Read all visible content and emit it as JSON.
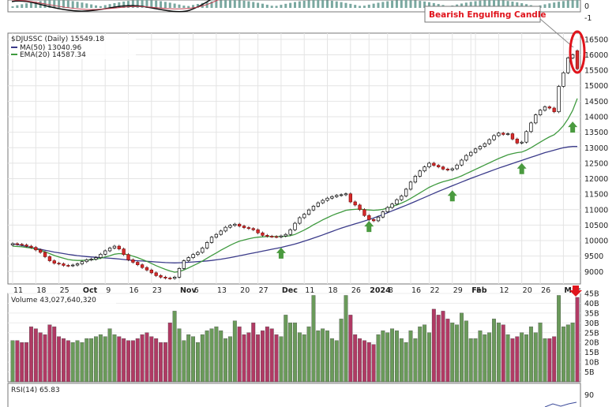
{
  "chart_data": {
    "type": "candlestick",
    "symbol_label": "$DJUSSC (Daily) 15549.18",
    "ma50_label": "MA(50) 13040.96",
    "ema20_label": "EMA(20) 14587.34",
    "annotation": "Bearish Engulfing Candle",
    "volume_label": "Volume 43,027,640,320",
    "rsi_label": "RSI(14) 65.83",
    "price_ylim": [
      8600,
      16700
    ],
    "price_ticks": [
      9000,
      9500,
      10000,
      10500,
      11000,
      11500,
      12000,
      12500,
      13000,
      13500,
      14000,
      14500,
      15000,
      15500,
      16000,
      16500
    ],
    "volume_ylim": [
      0,
      45
    ],
    "volume_ticks": [
      "5B",
      "10B",
      "15B",
      "20B",
      "25B",
      "30B",
      "35B",
      "40B",
      "45B"
    ],
    "volume_tick_values": [
      5,
      10,
      15,
      20,
      25,
      30,
      35,
      40,
      45
    ],
    "rsi_tick": "90",
    "macd_ticks": [
      "0",
      "-1"
    ],
    "x_labels": [
      {
        "label": "11",
        "i": 0
      },
      {
        "label": "18",
        "i": 5
      },
      {
        "label": "25",
        "i": 10
      },
      {
        "label": "Oct",
        "i": 15,
        "bold": true
      },
      {
        "label": "9",
        "i": 20
      },
      {
        "label": "16",
        "i": 25
      },
      {
        "label": "23",
        "i": 30
      },
      {
        "label": "Nov",
        "i": 36,
        "bold": true
      },
      {
        "label": "6",
        "i": 39
      },
      {
        "label": "13",
        "i": 44
      },
      {
        "label": "20",
        "i": 49
      },
      {
        "label": "27",
        "i": 53
      },
      {
        "label": "Dec",
        "i": 58,
        "bold": true
      },
      {
        "label": "11",
        "i": 63
      },
      {
        "label": "18",
        "i": 68
      },
      {
        "label": "26",
        "i": 73
      },
      {
        "label": "2024",
        "i": 77,
        "bold": true
      },
      {
        "label": "8",
        "i": 81
      },
      {
        "label": "16",
        "i": 86
      },
      {
        "label": "22",
        "i": 90
      },
      {
        "label": "29",
        "i": 95
      },
      {
        "label": "Feb",
        "i": 99,
        "bold": true
      },
      {
        "label": "5",
        "i": 100
      },
      {
        "label": "12",
        "i": 105
      },
      {
        "label": "20",
        "i": 110
      },
      {
        "label": "26",
        "i": 114
      },
      {
        "label": "Mar",
        "i": 119,
        "bold": true
      }
    ],
    "close": [
      9900,
      9880,
      9860,
      9820,
      9780,
      9700,
      9620,
      9480,
      9350,
      9270,
      9250,
      9200,
      9190,
      9210,
      9250,
      9320,
      9380,
      9400,
      9450,
      9560,
      9670,
      9760,
      9820,
      9730,
      9550,
      9380,
      9300,
      9220,
      9130,
      9050,
      8960,
      8870,
      8820,
      8790,
      8780,
      8820,
      9100,
      9350,
      9450,
      9550,
      9620,
      9760,
      9940,
      10110,
      10200,
      10310,
      10430,
      10490,
      10530,
      10470,
      10420,
      10390,
      10350,
      10250,
      10170,
      10140,
      10130,
      10120,
      10150,
      10200,
      10350,
      10560,
      10740,
      10850,
      10990,
      11110,
      11220,
      11300,
      11370,
      11420,
      11460,
      11480,
      11510,
      11250,
      11150,
      11000,
      10810,
      10680,
      10640,
      10760,
      10930,
      11070,
      11180,
      11320,
      11440,
      11660,
      11890,
      12080,
      12250,
      12380,
      12500,
      12430,
      12380,
      12310,
      12280,
      12320,
      12440,
      12600,
      12750,
      12850,
      12960,
      13040,
      13130,
      13260,
      13390,
      13470,
      13430,
      13450,
      13280,
      13150,
      13180,
      13520,
      13800,
      14060,
      14210,
      14320,
      14280,
      14160,
      14980,
      15420,
      15900,
      16000,
      15549.18
    ],
    "volume": [
      21,
      21,
      20,
      20,
      28,
      27,
      25,
      24,
      29,
      28,
      23,
      22,
      21,
      20,
      21,
      20,
      22,
      22,
      23,
      24,
      23,
      27,
      24,
      23,
      22,
      21,
      21,
      22,
      24,
      25,
      23,
      22,
      20,
      20,
      30,
      36,
      27,
      21,
      24,
      23,
      20,
      24,
      26,
      27,
      28,
      26,
      22,
      23,
      31,
      28,
      24,
      25,
      30,
      24,
      26,
      28,
      27,
      24,
      23,
      34,
      30,
      30,
      25,
      24,
      28,
      44,
      26,
      27,
      26,
      22,
      21,
      32,
      44,
      34,
      24,
      22,
      21,
      20,
      19,
      24,
      26,
      25,
      27,
      26,
      22,
      20,
      26,
      22,
      28,
      29,
      25,
      37,
      34,
      36,
      32,
      30,
      29,
      35,
      31,
      22,
      22,
      26,
      24,
      25,
      32,
      30,
      29,
      24,
      22,
      23,
      25,
      24,
      28,
      25,
      30,
      22,
      22,
      23,
      44,
      28,
      29,
      30,
      43
    ],
    "ma50": [
      9900,
      9870,
      9840,
      9810,
      9780,
      9750,
      9720,
      9690,
      9660,
      9630,
      9605,
      9580,
      9555,
      9535,
      9515,
      9500,
      9485,
      9470,
      9460,
      9450,
      9440,
      9430,
      9420,
      9405,
      9390,
      9375,
      9360,
      9350,
      9340,
      9330,
      9320,
      9310,
      9300,
      9290,
      9285,
      9280,
      9285,
      9290,
      9300,
      9310,
      9320,
      9330,
      9345,
      9360,
      9380,
      9400,
      9425,
      9450,
      9480,
      9510,
      9540,
      9570,
      9600,
      9630,
      9660,
      9690,
      9720,
      9750,
      9780,
      9815,
      9850,
      9890,
      9935,
      9980,
      10030,
      10080,
      10130,
      10185,
      10240,
      10295,
      10350,
      10400,
      10450,
      10495,
      10540,
      10585,
      10630,
      10680,
      10730,
      10785,
      10840,
      10900,
      10960,
      11020,
      11080,
      11140,
      11200,
      11265,
      11330,
      11395,
      11460,
      11525,
      11590,
      11650,
      11710,
      11770,
      11830,
      11890,
      11950,
      12010,
      12065,
      12120,
      12175,
      12230,
      12285,
      12340,
      12390,
      12440,
      12490,
      12540,
      12590,
      12640,
      12690,
      12740,
      12790,
      12840,
      12880,
      12920,
      12960,
      13000,
      13025,
      13040,
      13040.96
    ],
    "ema20": [
      9820,
      9810,
      9800,
      9780,
      9760,
      9730,
      9690,
      9640,
      9580,
      9520,
      9470,
      9430,
      9390,
      9370,
      9360,
      9360,
      9370,
      9380,
      9400,
      9430,
      9470,
      9510,
      9560,
      9580,
      9570,
      9540,
      9500,
      9450,
      9390,
      9330,
      9260,
      9190,
      9130,
      9070,
      9020,
      8980,
      9000,
      9050,
      9120,
      9190,
      9260,
      9340,
      9430,
      9520,
      9600,
      9690,
      9770,
      9850,
      9920,
      9980,
      10020,
      10060,
      10090,
      10110,
      10120,
      10130,
      10130,
      10130,
      10130,
      10140,
      10160,
      10200,
      10270,
      10340,
      10420,
      10510,
      10590,
      10670,
      10740,
      10810,
      10870,
      10920,
      10980,
      11000,
      11010,
      11020,
      11000,
      10990,
      10980,
      10990,
      11010,
      11050,
      11100,
      11150,
      11210,
      11280,
      11360,
      11450,
      11540,
      11630,
      11720,
      11790,
      11850,
      11900,
      11940,
      11980,
      12030,
      12090,
      12160,
      12230,
      12300,
      12370,
      12440,
      12510,
      12580,
      12650,
      12710,
      12770,
      12810,
      12840,
      12860,
      12920,
      13000,
      13090,
      13180,
      13270,
      13350,
      13420,
      13550,
      13710,
      13930,
      14200,
      14587.34
    ],
    "support_arrow_indices": [
      58,
      77,
      95,
      110,
      121
    ],
    "colors": {
      "up": "#ffffff",
      "down": "#d62b2b",
      "up_outline": "#000000",
      "vol_up": "#6a9a5a",
      "vol_down": "#b03a64",
      "ma50": "#3b3b8a",
      "ema20": "#3f9a3f",
      "arrow": "#4a9a3f",
      "highlight": "#e0141c"
    }
  }
}
